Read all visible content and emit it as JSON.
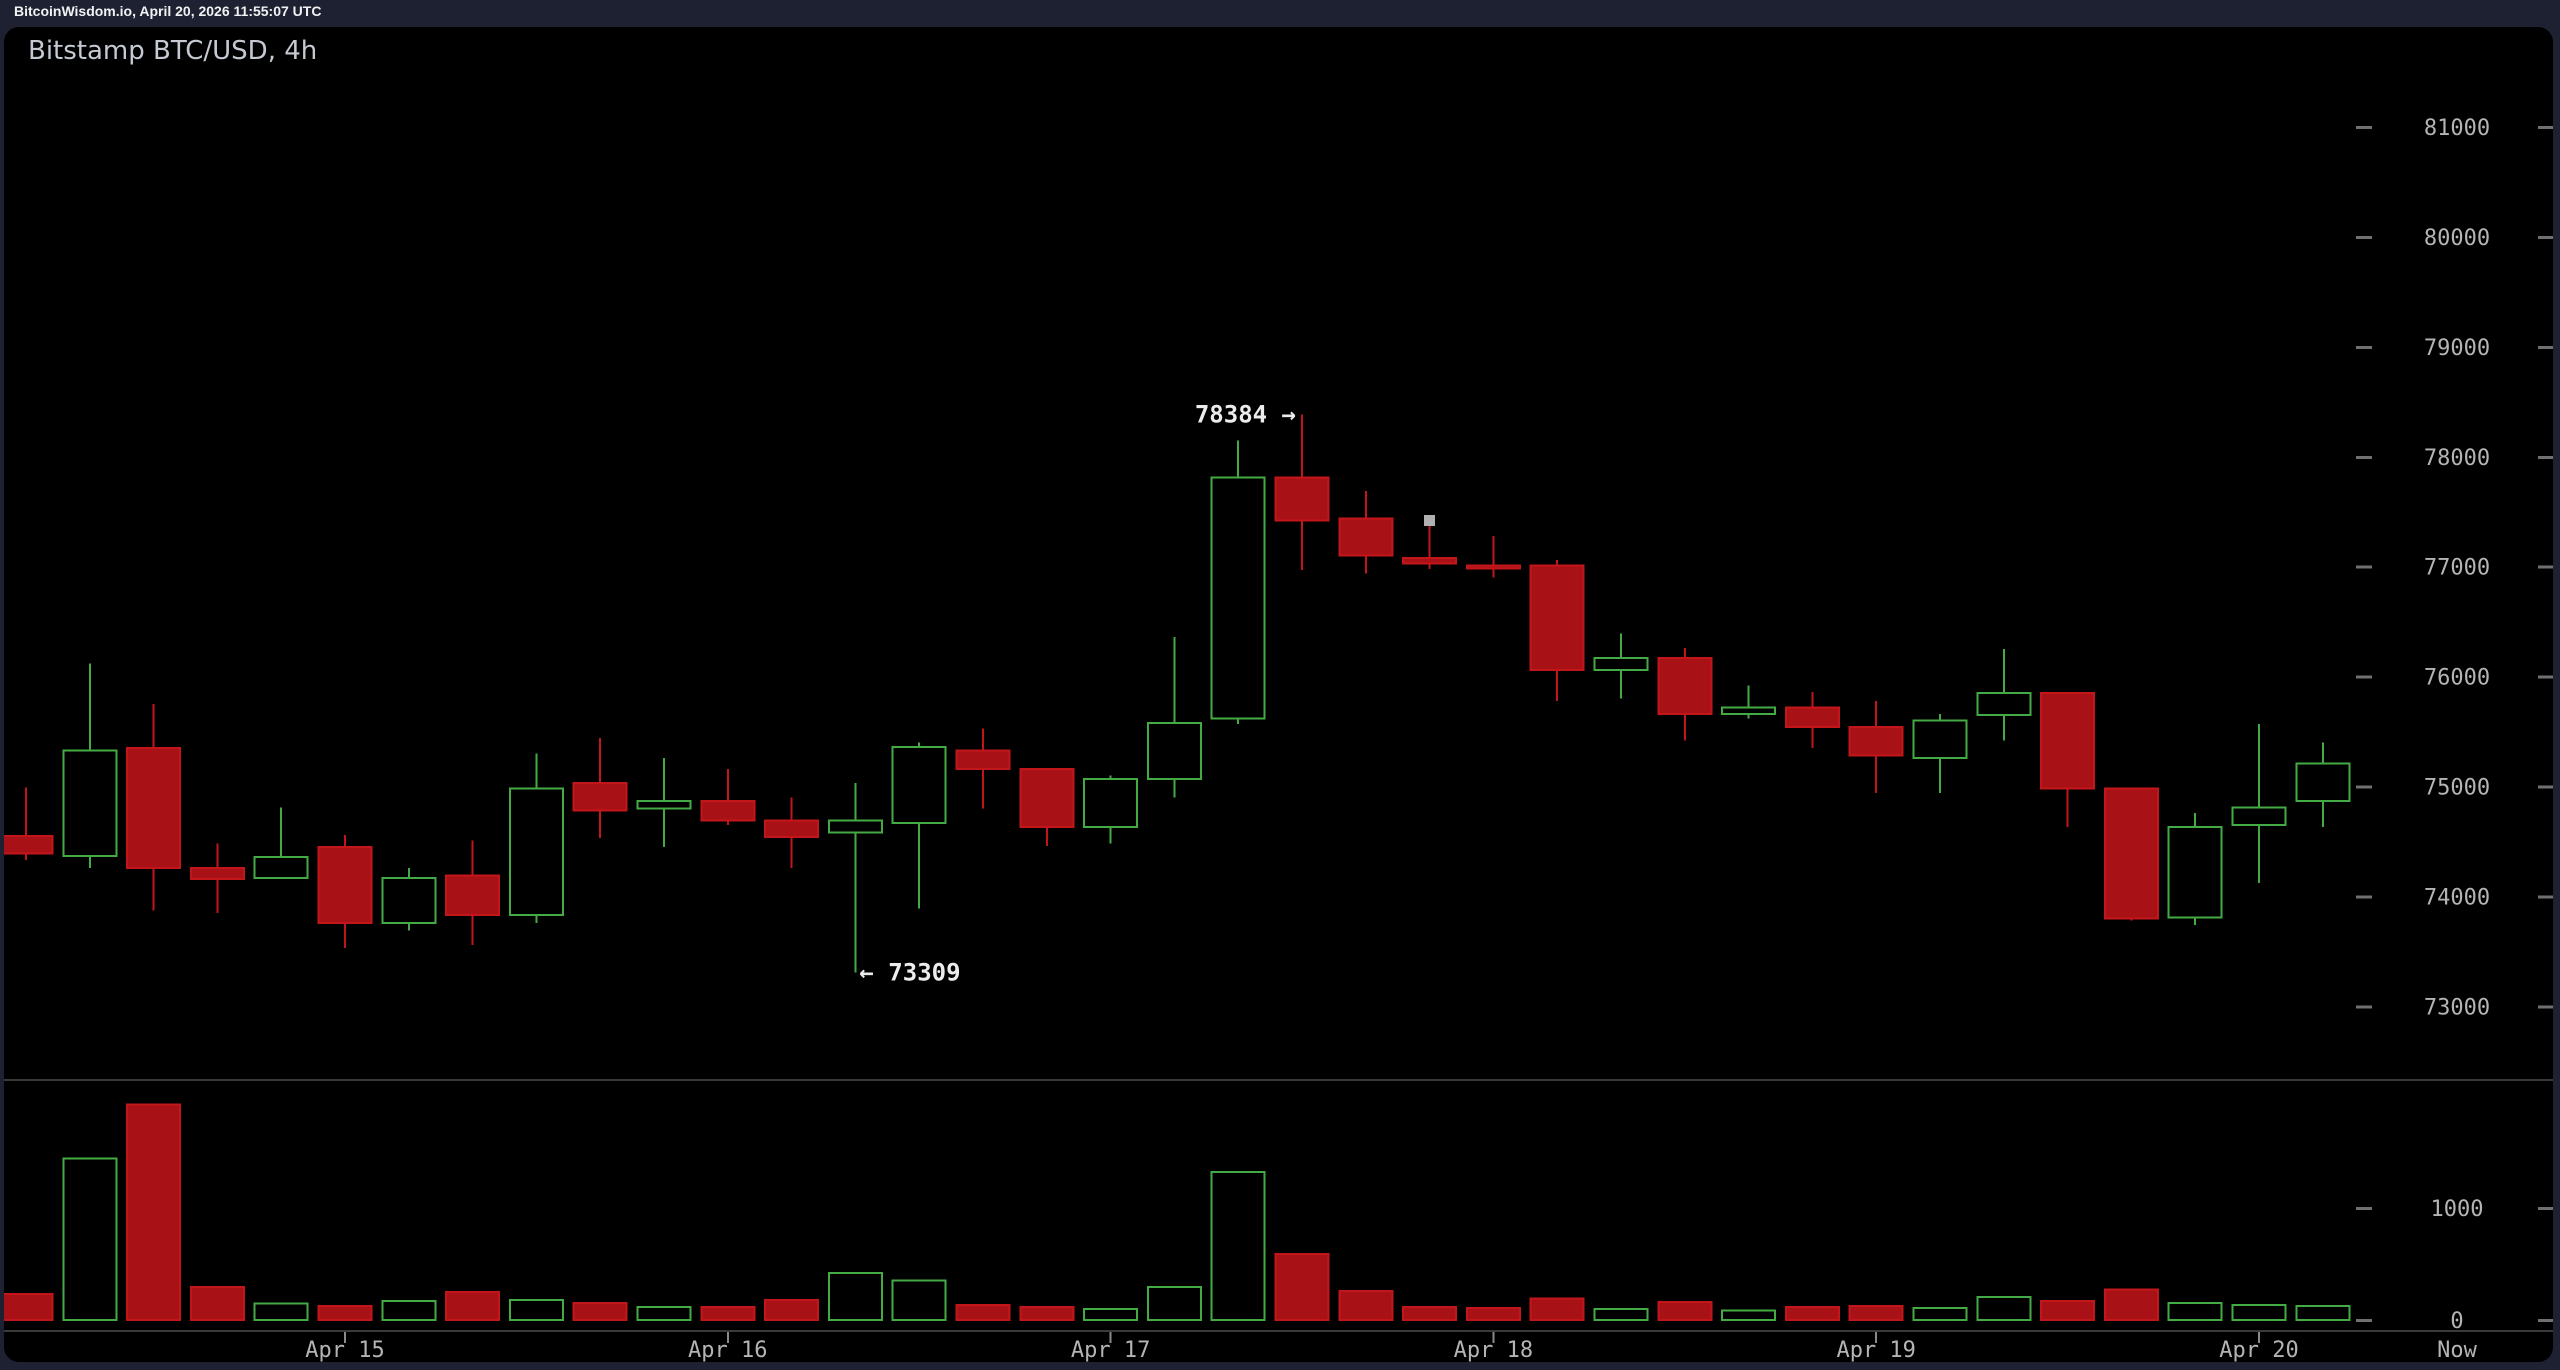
{
  "header": {
    "status_text": "BitcoinWisdom.io, April 20, 2026 11:55:07 UTC"
  },
  "chart": {
    "title": "Bitstamp BTC/USD, 4h"
  },
  "colors": {
    "up": "#44ab44",
    "down_fill": "#a81216",
    "down_stroke": "#c3161b",
    "frame": "#1d2132",
    "panel_bg": "#000000",
    "axis_text": "#b4b4b4",
    "axis_line": "#3a3a3a",
    "tick_dash": "#707070",
    "time_tick": "#8a8a8a",
    "annotation_text": "#ececec",
    "cursor": "#b0b0b0"
  },
  "chart_data": {
    "type": "candlestick",
    "title": "Bitstamp BTC/USD, 4h",
    "interval": "4h",
    "exchange": "Bitstamp",
    "pair": "BTC/USD",
    "grid": false,
    "legend_position": "none",
    "price_axis": {
      "ticks": [
        81000,
        80000,
        79000,
        78000,
        77000,
        76000,
        75000,
        74000,
        73000
      ],
      "ylim": [
        72330,
        81910
      ]
    },
    "volume_axis": {
      "ticks": [
        1000,
        0
      ],
      "ylim": [
        0,
        2130
      ]
    },
    "time_axis": {
      "labels": [
        {
          "label": "Apr 15",
          "candle_index": 6
        },
        {
          "label": "Apr 16",
          "candle_index": 12
        },
        {
          "label": "Apr 17",
          "candle_index": 18
        },
        {
          "label": "Apr 18",
          "candle_index": 24
        },
        {
          "label": "Apr 19",
          "candle_index": 30
        },
        {
          "label": "Apr 20",
          "candle_index": 36
        }
      ],
      "now_label": "Now"
    },
    "annotations": {
      "high": {
        "text": "78384 →",
        "price": 78384,
        "candle_index": 21
      },
      "low": {
        "text": "← 73309",
        "price": 73309,
        "candle_index": 14
      }
    },
    "cursor_marker": {
      "candle_index": 23,
      "price": 77420
    },
    "candles": [
      {
        "time": "Apr 14 04:00",
        "open": 74550,
        "high": 74990,
        "low": 74330,
        "close": 74390,
        "volume": 230,
        "dir": "down"
      },
      {
        "time": "Apr 14 08:00",
        "open": 74370,
        "high": 76120,
        "low": 74260,
        "close": 75330,
        "volume": 1440,
        "dir": "up"
      },
      {
        "time": "Apr 14 12:00",
        "open": 75350,
        "high": 75750,
        "low": 73870,
        "close": 74260,
        "volume": 1920,
        "dir": "down"
      },
      {
        "time": "Apr 14 16:00",
        "open": 74260,
        "high": 74480,
        "low": 73850,
        "close": 74160,
        "volume": 295,
        "dir": "down"
      },
      {
        "time": "Apr 14 20:00",
        "open": 74170,
        "high": 74810,
        "low": 74160,
        "close": 74360,
        "volume": 145,
        "dir": "up"
      },
      {
        "time": "Apr 15 00:00",
        "open": 74450,
        "high": 74560,
        "low": 73530,
        "close": 73760,
        "volume": 125,
        "dir": "down"
      },
      {
        "time": "Apr 15 04:00",
        "open": 73760,
        "high": 74260,
        "low": 73690,
        "close": 74170,
        "volume": 170,
        "dir": "up"
      },
      {
        "time": "Apr 15 08:00",
        "open": 74190,
        "high": 74510,
        "low": 73560,
        "close": 73830,
        "volume": 250,
        "dir": "down"
      },
      {
        "time": "Apr 15 12:00",
        "open": 73830,
        "high": 75300,
        "low": 73760,
        "close": 74980,
        "volume": 180,
        "dir": "up"
      },
      {
        "time": "Apr 15 16:00",
        "open": 75030,
        "high": 75440,
        "low": 74530,
        "close": 74780,
        "volume": 150,
        "dir": "down"
      },
      {
        "time": "Apr 15 20:00",
        "open": 74800,
        "high": 75260,
        "low": 74450,
        "close": 74870,
        "volume": 115,
        "dir": "up"
      },
      {
        "time": "Apr 16 00:00",
        "open": 74870,
        "high": 75160,
        "low": 74650,
        "close": 74690,
        "volume": 115,
        "dir": "down"
      },
      {
        "time": "Apr 16 04:00",
        "open": 74690,
        "high": 74900,
        "low": 74260,
        "close": 74540,
        "volume": 180,
        "dir": "down"
      },
      {
        "time": "Apr 16 08:00",
        "open": 74580,
        "high": 75030,
        "low": 73309,
        "close": 74690,
        "volume": 420,
        "dir": "up"
      },
      {
        "time": "Apr 16 12:00",
        "open": 74670,
        "high": 75400,
        "low": 73890,
        "close": 75360,
        "volume": 350,
        "dir": "up"
      },
      {
        "time": "Apr 16 16:00",
        "open": 75330,
        "high": 75530,
        "low": 74800,
        "close": 75160,
        "volume": 135,
        "dir": "down"
      },
      {
        "time": "Apr 16 20:00",
        "open": 75160,
        "high": 75160,
        "low": 74460,
        "close": 74630,
        "volume": 115,
        "dir": "down"
      },
      {
        "time": "Apr 17 00:00",
        "open": 74630,
        "high": 75100,
        "low": 74480,
        "close": 75070,
        "volume": 100,
        "dir": "up"
      },
      {
        "time": "Apr 17 04:00",
        "open": 75070,
        "high": 76360,
        "low": 74900,
        "close": 75580,
        "volume": 295,
        "dir": "up"
      },
      {
        "time": "Apr 17 08:00",
        "open": 75620,
        "high": 78150,
        "low": 75570,
        "close": 77810,
        "volume": 1320,
        "dir": "up"
      },
      {
        "time": "Apr 17 12:00",
        "open": 77810,
        "high": 78384,
        "low": 76970,
        "close": 77420,
        "volume": 590,
        "dir": "down"
      },
      {
        "time": "Apr 17 16:00",
        "open": 77440,
        "high": 77690,
        "low": 76940,
        "close": 77100,
        "volume": 260,
        "dir": "down"
      },
      {
        "time": "Apr 17 20:00",
        "open": 77080,
        "high": 77390,
        "low": 76980,
        "close": 77030,
        "volume": 115,
        "dir": "down"
      },
      {
        "time": "Apr 18 00:00",
        "open": 77010,
        "high": 77280,
        "low": 76900,
        "close": 76990,
        "volume": 105,
        "dir": "down"
      },
      {
        "time": "Apr 18 04:00",
        "open": 77010,
        "high": 77060,
        "low": 75780,
        "close": 76060,
        "volume": 190,
        "dir": "down"
      },
      {
        "time": "Apr 18 08:00",
        "open": 76060,
        "high": 76390,
        "low": 75800,
        "close": 76170,
        "volume": 100,
        "dir": "up"
      },
      {
        "time": "Apr 18 12:00",
        "open": 76170,
        "high": 76260,
        "low": 75420,
        "close": 75660,
        "volume": 160,
        "dir": "down"
      },
      {
        "time": "Apr 18 16:00",
        "open": 75660,
        "high": 75920,
        "low": 75620,
        "close": 75720,
        "volume": 85,
        "dir": "up"
      },
      {
        "time": "Apr 18 20:00",
        "open": 75720,
        "high": 75860,
        "low": 75350,
        "close": 75540,
        "volume": 115,
        "dir": "down"
      },
      {
        "time": "Apr 19 00:00",
        "open": 75540,
        "high": 75780,
        "low": 74940,
        "close": 75280,
        "volume": 125,
        "dir": "down"
      },
      {
        "time": "Apr 19 04:00",
        "open": 75260,
        "high": 75660,
        "low": 74940,
        "close": 75600,
        "volume": 105,
        "dir": "up"
      },
      {
        "time": "Apr 19 08:00",
        "open": 75650,
        "high": 76250,
        "low": 75420,
        "close": 75850,
        "volume": 205,
        "dir": "up"
      },
      {
        "time": "Apr 19 12:00",
        "open": 75850,
        "high": 75860,
        "low": 74630,
        "close": 74980,
        "volume": 170,
        "dir": "down"
      },
      {
        "time": "Apr 19 16:00",
        "open": 74980,
        "high": 74980,
        "low": 73780,
        "close": 73800,
        "volume": 270,
        "dir": "down"
      },
      {
        "time": "Apr 19 20:00",
        "open": 73810,
        "high": 74760,
        "low": 73740,
        "close": 74630,
        "volume": 150,
        "dir": "up"
      },
      {
        "time": "Apr 20 00:00",
        "open": 74650,
        "high": 75570,
        "low": 74120,
        "close": 74810,
        "volume": 135,
        "dir": "up"
      },
      {
        "time": "Apr 20 04:00",
        "open": 74870,
        "high": 75400,
        "low": 74630,
        "close": 75210,
        "volume": 125,
        "dir": "up"
      }
    ]
  }
}
